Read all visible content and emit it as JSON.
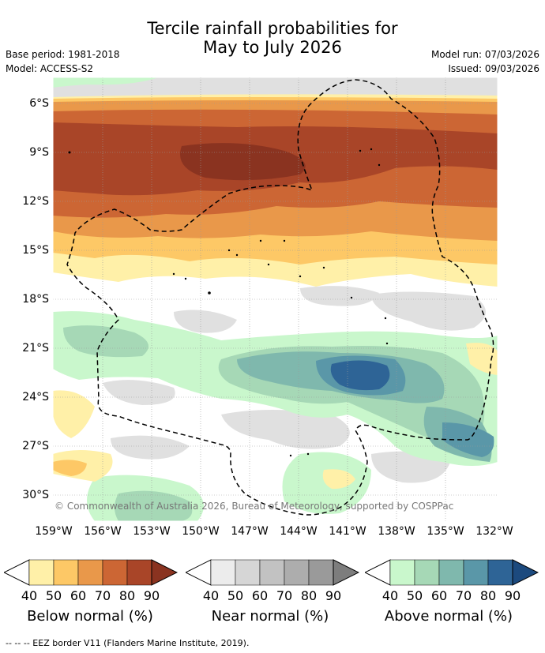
{
  "title_line1": "Tercile rainfall probabilities for",
  "title_line2": "May to July 2026",
  "base_period": "Base period: 1981-2018",
  "model": "Model: ACCESS-S2",
  "model_run": "Model run: 07/03/2026",
  "issued": "Issued: 09/03/2026",
  "lat_labels": [
    "6°S",
    "9°S",
    "12°S",
    "15°S",
    "18°S",
    "21°S",
    "24°S",
    "27°S",
    "30°S"
  ],
  "lon_labels": [
    "159°W",
    "156°W",
    "153°W",
    "150°W",
    "147°W",
    "144°W",
    "141°W",
    "138°W",
    "135°W",
    "132°W"
  ],
  "copyright": "© Commonwealth of Australia 2026, Bureau of Meteorology, supported by COSPPac",
  "legend": {
    "below": {
      "title": "Below normal (%)",
      "colors": [
        "#fff0a8",
        "#fdc866",
        "#e9984a",
        "#cc6634",
        "#a94528",
        "#8a3320"
      ]
    },
    "near": {
      "title": "Near normal (%)",
      "colors": [
        "#ececec",
        "#d6d6d6",
        "#c2c2c2",
        "#adadad",
        "#9a9a9a",
        "#7d7d7d"
      ]
    },
    "above": {
      "title": "Above normal (%)",
      "colors": [
        "#c9f7cc",
        "#a6d8b6",
        "#7fb8ad",
        "#5a97a8",
        "#2e6496",
        "#1c4a7e"
      ]
    },
    "ticks": [
      "40",
      "50",
      "60",
      "70",
      "80",
      "90"
    ]
  },
  "footnote": "--  --  -- EEZ border V11 (Flanders Marine Institute, 2019)."
}
